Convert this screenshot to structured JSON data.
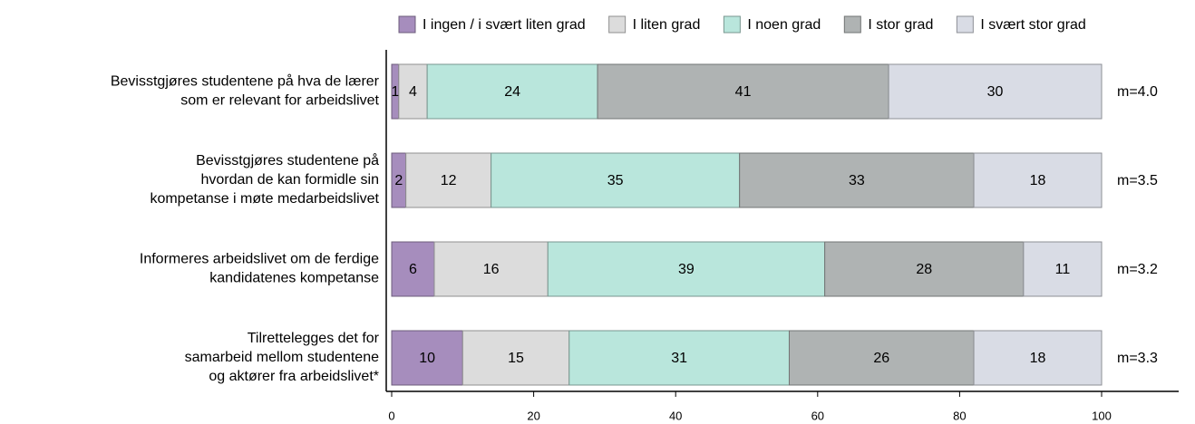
{
  "chart_data": {
    "type": "stacked_barh",
    "categories": [
      [
        "Bevisstgjøres studentene på hva de lærer",
        "som er relevant for arbeidslivet"
      ],
      [
        "Bevisstgjøres studentene på",
        "hvordan de kan formidle sin",
        "kompetanse i møte medarbeidslivet"
      ],
      [
        "Informeres arbeidslivet om de ferdige",
        "kandidatenes kompetanse"
      ],
      [
        "Tilrettelegges det for",
        "samarbeid mellom studentene",
        "og aktører fra arbeidslivet*"
      ]
    ],
    "series": [
      {
        "name": "I ingen / i svært liten grad",
        "color": "#a68dbd",
        "values": [
          1,
          2,
          6,
          10
        ]
      },
      {
        "name": "I liten grad",
        "color": "#dcdcdc",
        "values": [
          4,
          12,
          16,
          15
        ]
      },
      {
        "name": "I noen grad",
        "color": "#b9e6dc",
        "values": [
          24,
          35,
          39,
          31
        ]
      },
      {
        "name": "I stor grad",
        "color": "#afb3b3",
        "values": [
          41,
          33,
          28,
          26
        ]
      },
      {
        "name": "I svært stor grad",
        "color": "#d9dce5",
        "values": [
          30,
          18,
          11,
          18
        ]
      }
    ],
    "annotations": [
      "m=4.0",
      "m=3.5",
      "m=3.2",
      "m=3.3"
    ],
    "xlim": [
      0,
      100
    ],
    "xticks": [
      0,
      20,
      40,
      60,
      80,
      100
    ]
  }
}
